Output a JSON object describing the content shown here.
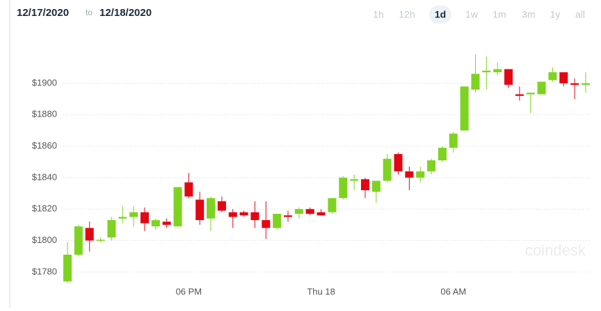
{
  "header": {
    "from": "12/17/2020",
    "to_word": "to",
    "to": "12/18/2020"
  },
  "ranges": [
    "1h",
    "12h",
    "1d",
    "1w",
    "1m",
    "3m",
    "1y",
    "all"
  ],
  "selected_range": "1d",
  "watermark": "coindesk",
  "chart_data": {
    "type": "candlestick",
    "categories": [
      null,
      null,
      null,
      null,
      null,
      null,
      null,
      null,
      null,
      null,
      null,
      "06 PM",
      null,
      null,
      null,
      null,
      null,
      null,
      null,
      null,
      null,
      null,
      null,
      "Thu 18",
      null,
      null,
      null,
      null,
      null,
      null,
      null,
      null,
      null,
      null,
      null,
      "06 AM",
      null,
      null,
      null,
      null,
      null,
      null,
      null,
      null,
      null,
      null,
      null,
      null
    ],
    "open": [
      1774,
      1791,
      1808,
      1800,
      1802,
      1814,
      1815,
      1818,
      1809,
      1812,
      1809,
      1837,
      1826,
      1814,
      1825,
      1818,
      1818,
      1818,
      1813,
      1808,
      1816,
      1817,
      1820,
      1818,
      1818,
      1827,
      1838,
      1839,
      1831,
      1838,
      1855,
      1844,
      1840,
      1844,
      1851,
      1859,
      1870,
      1896,
      1907,
      1907,
      1909,
      1893,
      1893,
      1893,
      1902,
      1907,
      1900,
      1899
    ],
    "high": [
      1799,
      1810,
      1812,
      1802,
      1815,
      1822,
      1822,
      1821,
      1814,
      1814,
      1834,
      1843,
      1831,
      1828,
      1828,
      1820,
      1819,
      1825,
      1825,
      1817,
      1819,
      1821,
      1821,
      1820,
      1827,
      1841,
      1842,
      1840,
      1838,
      1855,
      1856,
      1847,
      1847,
      1852,
      1860,
      1869,
      1898,
      1918,
      1917,
      1913,
      1909,
      1898,
      1894,
      1901,
      1910,
      1907,
      1903,
      1907
    ],
    "low": [
      1773,
      1790,
      1793,
      1799,
      1800,
      1811,
      1809,
      1806,
      1807,
      1808,
      1809,
      1827,
      1810,
      1806,
      1818,
      1808,
      1815,
      1808,
      1801,
      1807,
      1812,
      1814,
      1816,
      1816,
      1817,
      1826,
      1832,
      1827,
      1824,
      1837,
      1842,
      1832,
      1837,
      1842,
      1850,
      1856,
      1870,
      1894,
      1896,
      1905,
      1897,
      1889,
      1881,
      1893,
      1901,
      1898,
      1890,
      1894
    ],
    "close": [
      1791,
      1809,
      1800,
      1800.5,
      1813,
      1815,
      1818,
      1811,
      1813,
      1810,
      1834,
      1828,
      1813,
      1827,
      1819,
      1815,
      1816,
      1813,
      1808,
      1817,
      1815,
      1820,
      1817,
      1816,
      1827,
      1840,
      1839,
      1832,
      1838,
      1852,
      1844,
      1840,
      1844,
      1851,
      1859,
      1868,
      1898,
      1906,
      1908,
      1909,
      1899,
      1892,
      1894,
      1901,
      1907,
      1900,
      1899,
      1900
    ],
    "up_color": "#7ed321",
    "down_color": "#e30613",
    "ylim": [
      1768,
      1930
    ],
    "yticks": [
      {
        "value": 1780,
        "label": "$1780"
      },
      {
        "value": 1800,
        "label": "$1800"
      },
      {
        "value": 1820,
        "label": "$1820"
      },
      {
        "value": 1840,
        "label": "$1840"
      },
      {
        "value": 1860,
        "label": "$1860"
      },
      {
        "value": 1880,
        "label": "$1880"
      },
      {
        "value": 1900,
        "label": "$1900"
      }
    ],
    "grid": true
  }
}
